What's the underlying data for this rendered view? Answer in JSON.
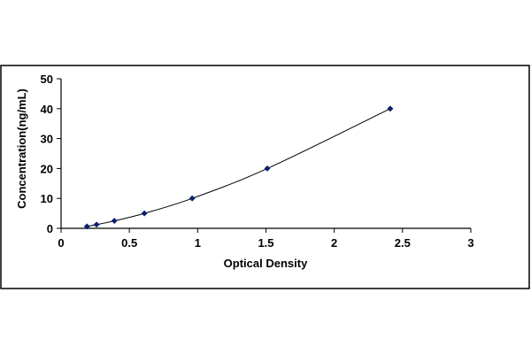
{
  "chart_data": {
    "type": "scatter",
    "title": "",
    "xlabel": "Optical Density",
    "ylabel": "Concentration(ng/mL)",
    "xlim": [
      0,
      3
    ],
    "ylim": [
      0,
      50
    ],
    "xticks": [
      "0",
      "0.5",
      "1",
      "1.5",
      "2",
      "2.5",
      "3"
    ],
    "yticks": [
      "0",
      "10",
      "20",
      "30",
      "40",
      "50"
    ],
    "grid": false,
    "legend": "none",
    "trendline": "smooth curve through points",
    "series": [
      {
        "x": [
          0.19,
          0.26,
          0.39,
          0.61,
          0.96,
          1.51,
          2.41
        ],
        "y": [
          0.625,
          1.25,
          2.5,
          5,
          10,
          20,
          40
        ],
        "marker": "diamond",
        "color": "#0b1f6e"
      }
    ],
    "colors": {
      "frame": "#000000",
      "curve": "#000000",
      "marker": "#0b1f6e"
    }
  }
}
